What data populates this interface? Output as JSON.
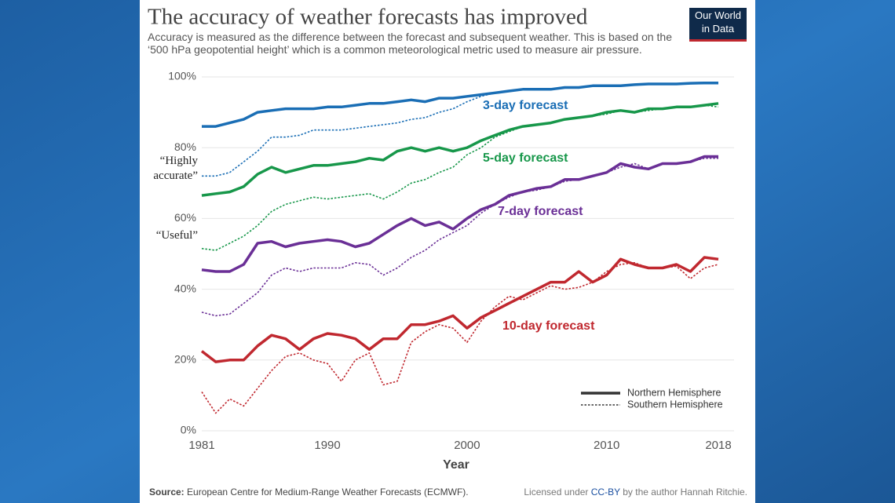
{
  "chart_data": {
    "type": "line",
    "title": "The accuracy of weather forecasts has improved",
    "subtitle": "Accuracy is measured as the difference between the forecast and subsequent weather. This is based on the ‘500 hPa geopotential height’ which is a common meteorological metric used to measure air pressure.",
    "logo": "Our World in Data",
    "x_label": "Year",
    "x": [
      1981,
      1982,
      1983,
      1984,
      1985,
      1986,
      1987,
      1988,
      1989,
      1990,
      1991,
      1992,
      1993,
      1994,
      1995,
      1996,
      1997,
      1998,
      1999,
      2000,
      2001,
      2002,
      2003,
      2004,
      2005,
      2006,
      2007,
      2008,
      2009,
      2010,
      2011,
      2012,
      2013,
      2014,
      2015,
      2016,
      2017,
      2018
    ],
    "xlim": [
      1981,
      2018
    ],
    "xticks": [
      1981,
      1990,
      2000,
      2010,
      2018
    ],
    "ylim": [
      0,
      100
    ],
    "yticks": [
      {
        "value": 0,
        "label": "0%"
      },
      {
        "value": 20,
        "label": "20%"
      },
      {
        "value": 40,
        "label": "40%"
      },
      {
        "value": 60,
        "label": "60%"
      },
      {
        "value": 80,
        "label": "80%"
      },
      {
        "value": 100,
        "label": "100%"
      }
    ],
    "grid": true,
    "annotations": [
      "“Highly accurate”",
      "“Useful”"
    ],
    "legend": [
      "Northern Hemisphere",
      "Southern Hemisphere"
    ],
    "series": [
      {
        "name": "3-day forecast",
        "color": "#1a6eb5",
        "northern": [
          86,
          86,
          87,
          88,
          90,
          90.5,
          91,
          91,
          91,
          91.5,
          91.5,
          92,
          92.5,
          92.5,
          93,
          93.5,
          93,
          94,
          94,
          94.5,
          95,
          95.5,
          96,
          96.5,
          96.5,
          96.5,
          97,
          97,
          97.5,
          97.5,
          97.5,
          97.8,
          98,
          98,
          98,
          98.2,
          98.3,
          98.3
        ],
        "southern": [
          72,
          72,
          73,
          76,
          79,
          83,
          83,
          83.5,
          85,
          85,
          85,
          85.5,
          86,
          86.5,
          87,
          88,
          88.5,
          90,
          91,
          93,
          94.5,
          95.5,
          96,
          96.5,
          96.5,
          96.5,
          97,
          97,
          97.5,
          97.5,
          97.5,
          97.8,
          98,
          98,
          98,
          98.2,
          98.3,
          98.3
        ]
      },
      {
        "name": "5-day forecast",
        "color": "#17974a",
        "northern": [
          66.5,
          67,
          67.5,
          69,
          72.5,
          74.5,
          73,
          74,
          75,
          75,
          75.5,
          76,
          77,
          76.5,
          79,
          80,
          79,
          80,
          79,
          80,
          82,
          83.5,
          85,
          86,
          86.5,
          87,
          88,
          88.5,
          89,
          90,
          90.5,
          90,
          91,
          91,
          91.5,
          91.5,
          92,
          92.5
        ],
        "southern": [
          51.5,
          51,
          53,
          55,
          58,
          62,
          64,
          65,
          66,
          65.5,
          66,
          66.5,
          67,
          65.5,
          67.5,
          70,
          71,
          73,
          74.5,
          78,
          80,
          83,
          84.5,
          86,
          86.5,
          87,
          88,
          88.5,
          89,
          89.5,
          90.5,
          90,
          90.5,
          91,
          91.5,
          91.5,
          92,
          91.5
        ]
      },
      {
        "name": "7-day forecast",
        "color": "#6a2f96",
        "northern": [
          45.5,
          45,
          45,
          47,
          53,
          53.5,
          52,
          53,
          53.5,
          54,
          53.5,
          52,
          53,
          55.5,
          58,
          60,
          58,
          59,
          57,
          60,
          62.5,
          64,
          66.5,
          67.5,
          68.5,
          69,
          71,
          71,
          72,
          73,
          75.5,
          74.5,
          74,
          75.5,
          75.5,
          76,
          77.5,
          77.5
        ],
        "southern": [
          33.5,
          32.5,
          33,
          36,
          39,
          44,
          46,
          45,
          46,
          46,
          46,
          47.5,
          47,
          44,
          46,
          49,
          51,
          54,
          56,
          58,
          61.5,
          64,
          66,
          67.5,
          68,
          69,
          70.5,
          71,
          72,
          73,
          74.5,
          75.5,
          74,
          75.5,
          75.5,
          76,
          77,
          77
        ]
      },
      {
        "name": "10-day forecast",
        "color": "#c0282f",
        "northern": [
          22.5,
          19.5,
          20,
          20,
          24,
          27,
          26,
          23,
          26,
          27.5,
          27,
          26,
          23,
          26,
          26,
          30,
          30,
          31,
          32.5,
          29,
          32,
          34,
          36,
          38,
          40,
          42,
          42,
          45,
          42,
          44,
          48.5,
          47,
          46,
          46,
          47,
          45,
          49,
          48.5
        ],
        "southern": [
          11,
          5,
          9,
          7,
          12,
          17,
          21,
          22,
          20,
          19,
          14,
          20,
          22,
          13,
          14,
          25,
          28,
          30,
          29,
          25,
          31,
          35,
          38,
          37,
          39,
          41,
          40,
          40.5,
          42,
          45,
          47,
          47.5,
          46,
          46,
          46.5,
          43,
          46,
          47
        ]
      }
    ],
    "source_label": "Source:",
    "source": "European Centre for Medium-Range Weather Forecasts (ECMWF).",
    "license_prefix": "Licensed under",
    "license_link": "CC-BY",
    "license_suffix": "by the author Hannah Ritchie."
  }
}
